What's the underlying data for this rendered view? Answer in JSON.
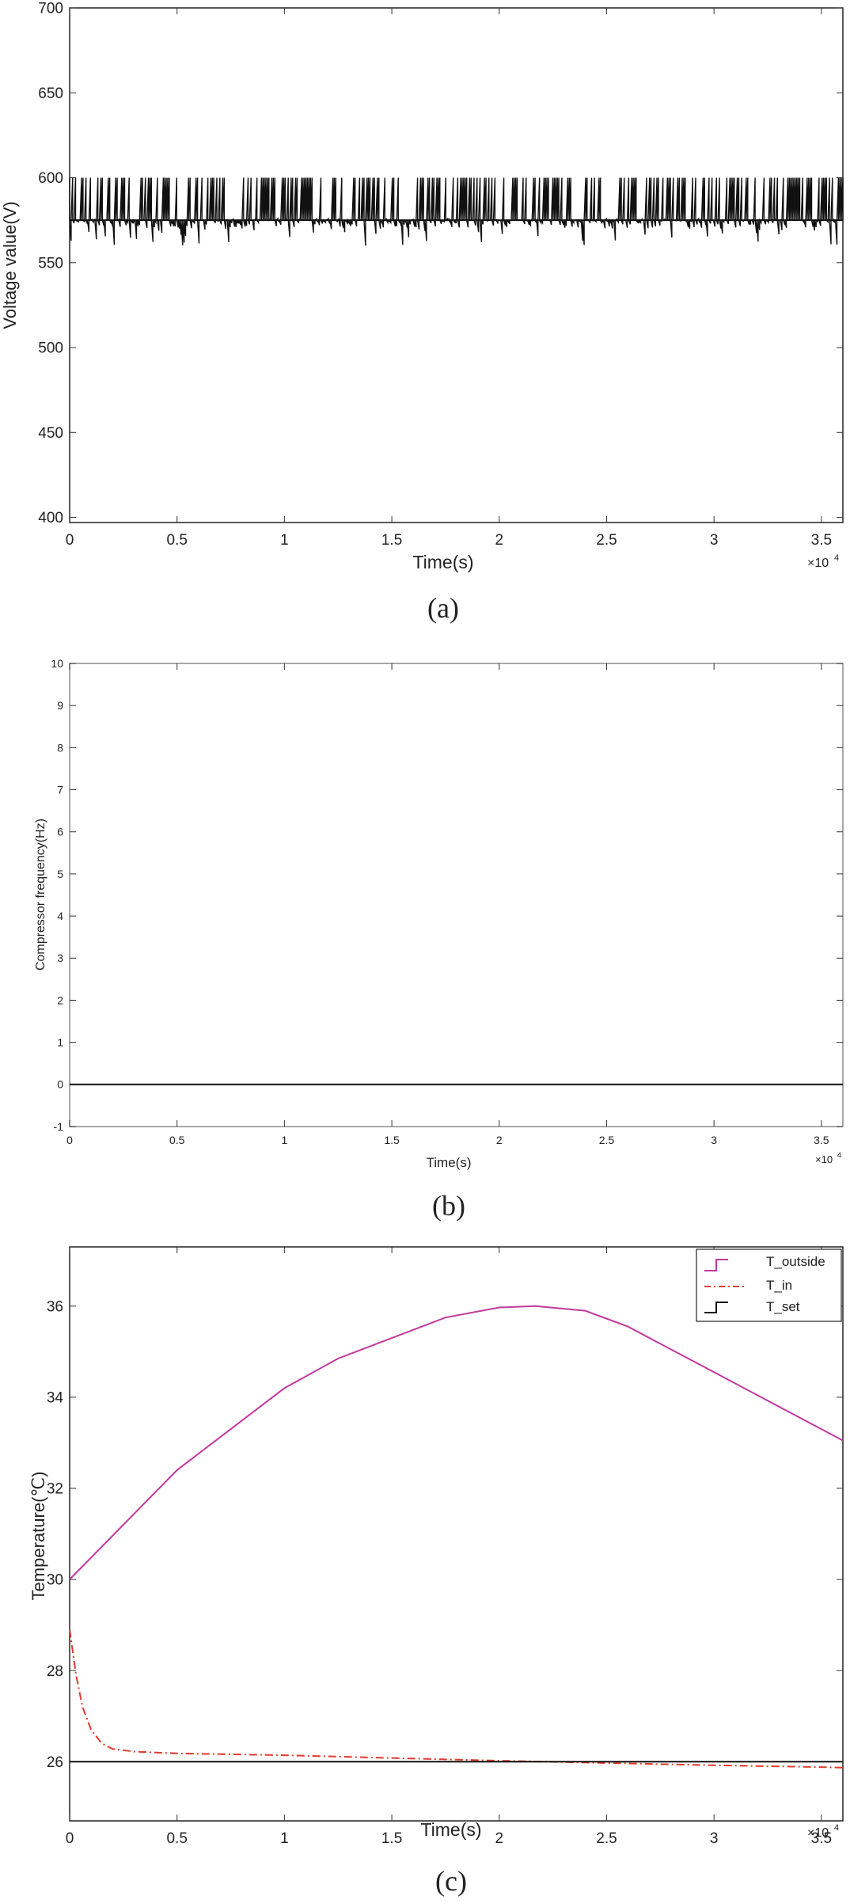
{
  "chart_data": [
    {
      "panel": "a",
      "type": "line",
      "caption": "(a)",
      "xlabel": "Time(s)",
      "ylabel": "Voltage value(V)",
      "x_exponent": "×10^4",
      "xlim": [
        0,
        3.6
      ],
      "ylim": [
        397,
        700
      ],
      "xticks": [
        "0",
        "0.5",
        "1",
        "1.5",
        "2",
        "2.5",
        "3",
        "3.5"
      ],
      "xtick_values": [
        0,
        0.5,
        1,
        1.5,
        2,
        2.5,
        3,
        3.5
      ],
      "yticks": [
        "400",
        "450",
        "500",
        "550",
        "600",
        "650",
        "700"
      ],
      "ytick_values": [
        400,
        450,
        500,
        550,
        600,
        650,
        700
      ],
      "series": [
        {
          "color": "#111111",
          "description": "rapidly switching signal between about 570 V and 600 V with occasional dips to about 560 V",
          "baseline": 575,
          "upper": 600,
          "lower": 570,
          "min_dip": 560
        }
      ]
    },
    {
      "panel": "b",
      "type": "line",
      "caption": "(b)",
      "xlabel": "Time(s)",
      "ylabel": "Compressor frequency(Hz)",
      "x_exponent": "×10^4",
      "xlim": [
        0,
        3.6
      ],
      "ylim": [
        -1,
        10
      ],
      "xticks": [
        "0",
        "0.5",
        "1",
        "1.5",
        "2",
        "2.5",
        "3",
        "3.5"
      ],
      "xtick_values": [
        0,
        0.5,
        1,
        1.5,
        2,
        2.5,
        3,
        3.5
      ],
      "yticks": [
        "-1",
        "0",
        "1",
        "2",
        "3",
        "4",
        "5",
        "6",
        "7",
        "8",
        "9",
        "10"
      ],
      "ytick_values": [
        -1,
        0,
        1,
        2,
        3,
        4,
        5,
        6,
        7,
        8,
        9,
        10
      ],
      "series": [
        {
          "color": "#111111",
          "x": [
            0,
            3.6
          ],
          "y": [
            0,
            0
          ]
        }
      ]
    },
    {
      "panel": "c",
      "type": "line",
      "caption": "(c)",
      "xlabel": "Time(s)",
      "ylabel": "Temperature(℃)",
      "x_exponent": "×10^4",
      "xlim": [
        0,
        3.6
      ],
      "ylim": [
        24.7,
        37.3
      ],
      "xticks": [
        "0",
        "0.5",
        "1",
        "1.5",
        "2",
        "2.5",
        "3",
        "3.5"
      ],
      "xtick_values": [
        0,
        0.5,
        1,
        1.5,
        2,
        2.5,
        3,
        3.5
      ],
      "yticks": [
        "26",
        "28",
        "30",
        "32",
        "34",
        "36"
      ],
      "ytick_values": [
        26,
        28,
        30,
        32,
        34,
        36
      ],
      "legend_position": "top-right",
      "series": [
        {
          "name": "T_outside",
          "color": "#c1399e",
          "style": "solid",
          "x": [
            0,
            0.25,
            0.5,
            0.75,
            1.0,
            1.25,
            1.5,
            1.75,
            2.0,
            2.17,
            2.4,
            2.6,
            2.8,
            3.0,
            3.2,
            3.4,
            3.6
          ],
          "y": [
            30.0,
            31.2,
            32.4,
            33.3,
            34.2,
            34.85,
            35.3,
            35.75,
            35.97,
            36.0,
            35.9,
            35.55,
            35.05,
            34.55,
            34.05,
            33.55,
            33.05
          ]
        },
        {
          "name": "T_in",
          "color": "#e23a2c",
          "style": "dashdot",
          "x": [
            0,
            0.03,
            0.06,
            0.1,
            0.15,
            0.2,
            0.3,
            0.5,
            1.0,
            1.5,
            2.0,
            2.5,
            3.0,
            3.5,
            3.6
          ],
          "y": [
            28.9,
            27.9,
            27.2,
            26.7,
            26.4,
            26.28,
            26.22,
            26.18,
            26.14,
            26.08,
            26.02,
            25.97,
            25.92,
            25.88,
            25.87
          ]
        },
        {
          "name": "T_set",
          "color": "#111111",
          "style": "solid",
          "x": [
            0,
            3.6
          ],
          "y": [
            26,
            26
          ]
        }
      ]
    }
  ]
}
